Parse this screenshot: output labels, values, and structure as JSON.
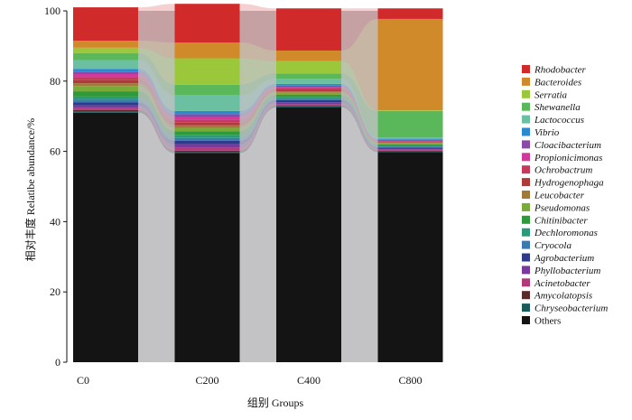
{
  "chart_data": {
    "type": "bar",
    "stacked": true,
    "percent_stacked": true,
    "title": "",
    "xlabel": "组别  Groups",
    "ylabel": "相对丰度  Relatibe abundance/%",
    "ylim": [
      0,
      100
    ],
    "yticks": [
      0,
      20,
      40,
      60,
      80,
      100
    ],
    "categories": [
      "C0",
      "C200",
      "C400",
      "C800"
    ],
    "legend_position": "right",
    "grid": false,
    "series": [
      {
        "name": "Others",
        "color": "#141414",
        "values": [
          71.0,
          59.5,
          72.5,
          59.8
        ]
      },
      {
        "name": "Chryseobacterium",
        "color": "#1a5a5a",
        "values": [
          0.3,
          0.3,
          0.3,
          0.2
        ]
      },
      {
        "name": "Amycolatopsis",
        "color": "#5a2a2a",
        "values": [
          0.5,
          0.4,
          0.3,
          0.2
        ]
      },
      {
        "name": "Acinetobacter",
        "color": "#b03a7a",
        "values": [
          0.6,
          0.8,
          0.4,
          0.3
        ]
      },
      {
        "name": "Phyllobacterium",
        "color": "#7a3a9a",
        "values": [
          0.7,
          1.0,
          0.5,
          0.3
        ]
      },
      {
        "name": "Agrobacterium",
        "color": "#2e3a8a",
        "values": [
          0.8,
          1.0,
          0.6,
          0.3
        ]
      },
      {
        "name": "Cryocola",
        "color": "#3a7ab0",
        "values": [
          0.8,
          0.8,
          0.5,
          0.3
        ]
      },
      {
        "name": "Dechloromonas",
        "color": "#2a9a7a",
        "values": [
          0.9,
          0.9,
          0.5,
          0.3
        ]
      },
      {
        "name": "Chitinibacter",
        "color": "#2e9a3a",
        "values": [
          1.5,
          1.0,
          0.5,
          0.3
        ]
      },
      {
        "name": "Pseudomonas",
        "color": "#7aaa3a",
        "values": [
          1.5,
          1.0,
          0.6,
          0.3
        ]
      },
      {
        "name": "Leucobacter",
        "color": "#a07a3a",
        "values": [
          0.8,
          0.7,
          0.4,
          0.2
        ]
      },
      {
        "name": "Hydrogenophaga",
        "color": "#b03a3a",
        "values": [
          1.0,
          0.8,
          0.4,
          0.2
        ]
      },
      {
        "name": "Ochrobactrum",
        "color": "#c43a5a",
        "values": [
          0.8,
          0.8,
          0.4,
          0.2
        ]
      },
      {
        "name": "Propionicimonas",
        "color": "#d03a9a",
        "values": [
          0.8,
          0.8,
          0.4,
          0.2
        ]
      },
      {
        "name": "Cloacibacterium",
        "color": "#8a4aa8",
        "values": [
          0.7,
          0.8,
          0.4,
          0.2
        ]
      },
      {
        "name": "Vibrio",
        "color": "#2a8ad0",
        "values": [
          0.8,
          0.9,
          0.5,
          0.3
        ]
      },
      {
        "name": "Lactococcus",
        "color": "#6ac0a0",
        "values": [
          2.5,
          4.5,
          1.5,
          0.4
        ]
      },
      {
        "name": "Shewanella",
        "color": "#5ab85a",
        "values": [
          2.0,
          3.0,
          1.5,
          7.5
        ]
      },
      {
        "name": "Serratia",
        "color": "#9ac83a",
        "values": [
          1.5,
          7.5,
          3.5,
          0.2
        ]
      },
      {
        "name": "Bacteroides",
        "color": "#d08a2a",
        "values": [
          2.0,
          4.5,
          3.0,
          26.0
        ]
      },
      {
        "name": "Rhodobacter",
        "color": "#d02a2a",
        "values": [
          9.5,
          11.0,
          12.0,
          3.0
        ]
      }
    ]
  }
}
